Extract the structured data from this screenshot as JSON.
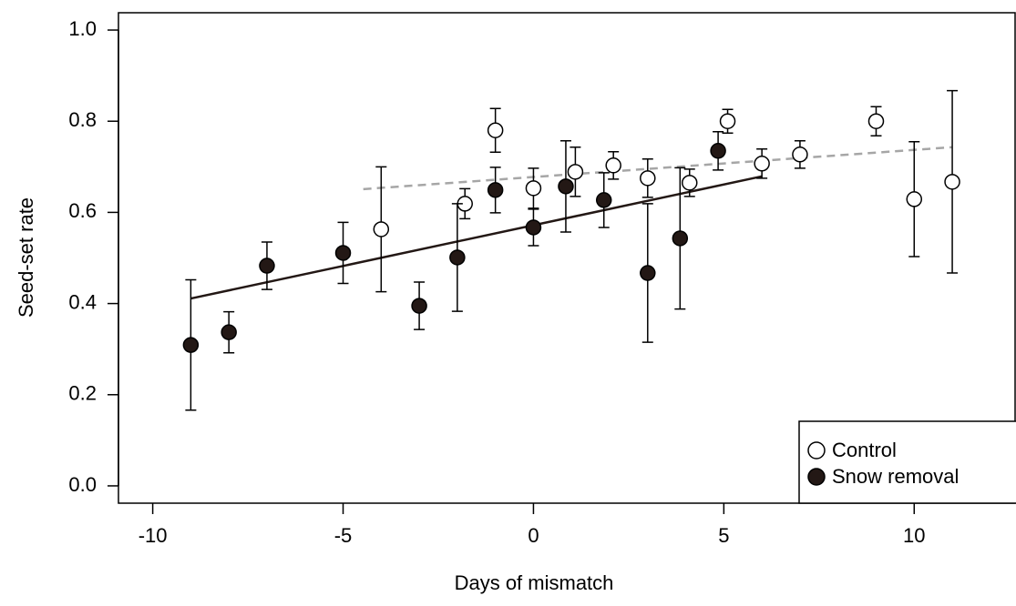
{
  "chart_data": {
    "type": "scatter",
    "x_label": "Days of mismatch",
    "y_label": "Seed-set rate",
    "xlim": [
      -10.9,
      12.65
    ],
    "xticks": [
      -10,
      -5,
      0,
      5,
      10
    ],
    "ylim": [
      -0.038,
      1.038
    ],
    "yticks": [
      {
        "value": 0,
        "label": "0.0"
      },
      0.2,
      0.4,
      0.6,
      0.8,
      {
        "value": 1,
        "label": "1.0"
      }
    ],
    "legend_position": "lower right",
    "series": [
      {
        "name": "Control",
        "color": "#ffffff",
        "x": [
          -4,
          -1.8,
          -1,
          0,
          1.1,
          2.1,
          3,
          4.1,
          5.1,
          6,
          7,
          9,
          10,
          11
        ],
        "values": [
          0.563,
          0.619,
          0.78,
          0.653,
          0.689,
          0.703,
          0.675,
          0.665,
          0.8,
          0.707,
          0.727,
          0.8,
          0.629,
          0.667
        ],
        "errors": [
          0.137,
          0.033,
          0.048,
          0.044,
          0.054,
          0.03,
          0.042,
          0.03,
          0.026,
          0.032,
          0.03,
          0.032,
          0.126,
          0.2
        ],
        "fit": {
          "color": "#a6a6a6",
          "dashed": true,
          "x": [
            -4.47,
            11
          ],
          "y": [
            0.651,
            0.743
          ]
        }
      },
      {
        "name": "Snow removal",
        "color": "#231815",
        "x": [
          -9,
          -8,
          -7,
          -5,
          -3,
          -2,
          -1,
          0,
          0.85,
          1.85,
          3,
          3.85,
          4.85
        ],
        "values": [
          0.309,
          0.337,
          0.483,
          0.511,
          0.395,
          0.501,
          0.649,
          0.567,
          0.657,
          0.627,
          0.467,
          0.543,
          0.735
        ],
        "errors": [
          0.143,
          0.045,
          0.052,
          0.067,
          0.052,
          0.118,
          0.05,
          0.04,
          0.1,
          0.06,
          0.152,
          0.155,
          0.042
        ],
        "fit": {
          "color": "#231815",
          "dashed": false,
          "x": [
            -9,
            6
          ],
          "y": [
            0.411,
            0.679
          ]
        }
      }
    ]
  }
}
